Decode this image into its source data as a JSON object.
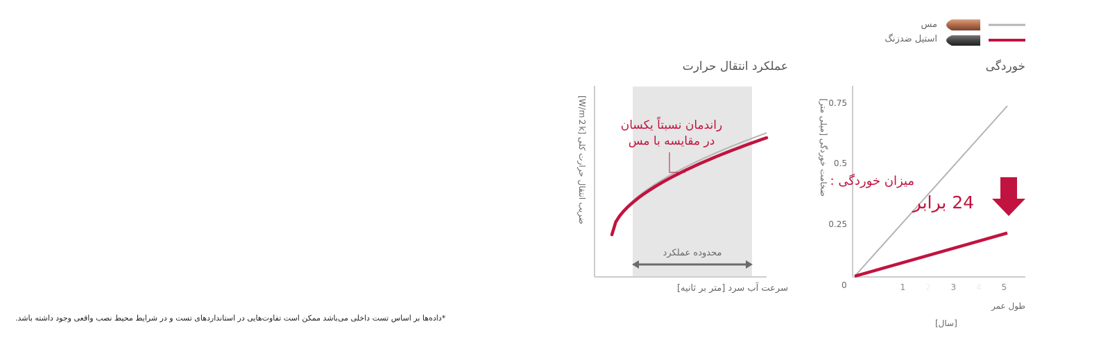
{
  "legend": {
    "items": [
      {
        "label": "مس",
        "color": "#b4b4b4",
        "swatch": "copper-pipe"
      },
      {
        "label": "استیل ضدزنگ",
        "color": "#c1133f",
        "swatch": "stainless-steel-pipe"
      }
    ]
  },
  "footnote": "*داده‌ها بر اساس تست داخلی می‌باشد ممکن است تفاوت‌هایی در استانداردهای تست و در شرایط محیط نصب واقعی وجود داشته باشد.",
  "chart_data": [
    {
      "type": "line",
      "title": "خوردگی",
      "ylabel": "ضخامت خوردگی [میلی متر]",
      "xlabel": "طول عمر",
      "xunit": "[سال]",
      "xticks": [
        "0",
        "1",
        "2",
        "3",
        "4",
        "5"
      ],
      "yticks": [
        "0.25",
        "0.5",
        "0.75"
      ],
      "ylim": [
        0,
        0.75
      ],
      "xlim": [
        0,
        5
      ],
      "grid": false,
      "series": [
        {
          "name": "مس",
          "color": "#b4b4b4",
          "x": [
            0,
            5
          ],
          "y": [
            0,
            0.74
          ]
        },
        {
          "name": "استیل ضدزنگ",
          "color": "#c1133f",
          "x": [
            0,
            5
          ],
          "y": [
            0,
            0.19
          ]
        }
      ],
      "annotation": {
        "line1": "میزان خوردگی :",
        "line2": "24 برابر",
        "icon": "arrow-down-icon",
        "color": "#c1133f"
      }
    },
    {
      "type": "line",
      "title": "عملکرد انتقال حرارت",
      "ylabel": "ضریب انتقال حرارت کلی [W/m２k]",
      "xlabel": "سرعت آب سرد [متر بر ثانیه]",
      "grid": false,
      "series": [
        {
          "name": "مس",
          "color": "#b4b4b4"
        },
        {
          "name": "استیل ضدزنگ",
          "color": "#c1133f"
        }
      ],
      "band_label": "محدوده عملکرد",
      "band_color": "#e6e6e6",
      "annotation": {
        "line1": "راندمان نسبتاً یکسان",
        "line2": "در مقایسه با مس",
        "color": "#c1133f"
      }
    }
  ]
}
